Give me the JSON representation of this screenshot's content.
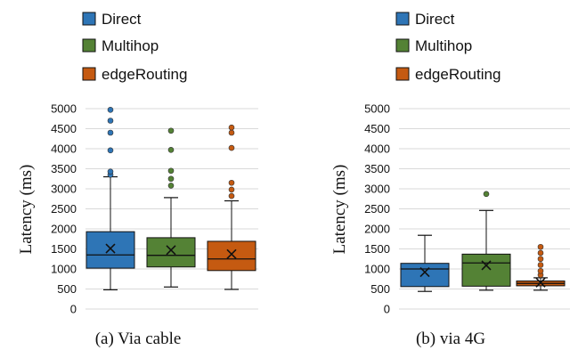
{
  "colors": {
    "direct": "#2e75b6",
    "multihop": "#548235",
    "edgeRouting": "#c55a11",
    "grid": "#d9d9d9",
    "line": "#111111"
  },
  "chart_data": [
    {
      "type": "box",
      "caption": "(a) Via cable",
      "ylabel": "Latency (ms)",
      "ylim": [
        0,
        5000
      ],
      "yticks": [
        "0",
        "500",
        "1000",
        "1500",
        "2000",
        "2500",
        "3000",
        "3500",
        "4000",
        "4500",
        "5000"
      ],
      "grid": true,
      "legend": {
        "position": "top-left",
        "entries": [
          "Direct",
          "Multihop",
          "edgeRouting"
        ]
      },
      "series": [
        {
          "name": "Direct",
          "color_key": "direct",
          "min": 480,
          "q1": 1020,
          "median": 1350,
          "q3": 1930,
          "max": 3300,
          "mean": 1510,
          "outliers": [
            3350,
            3430,
            3960,
            4400,
            4700,
            4970
          ]
        },
        {
          "name": "Multihop",
          "color_key": "multihop",
          "min": 550,
          "q1": 1050,
          "median": 1340,
          "q3": 1780,
          "max": 2780,
          "mean": 1470,
          "outliers": [
            3080,
            3250,
            3450,
            3970,
            4450
          ]
        },
        {
          "name": "edgeRouting",
          "color_key": "edgeRouting",
          "min": 490,
          "q1": 960,
          "median": 1250,
          "q3": 1690,
          "max": 2700,
          "mean": 1370,
          "outliers": [
            2820,
            2980,
            3150,
            4020,
            4400,
            4530
          ]
        }
      ]
    },
    {
      "type": "box",
      "caption": "(b) via 4G",
      "ylabel": "Latency (ms)",
      "ylim": [
        0,
        5000
      ],
      "yticks": [
        "0",
        "500",
        "1000",
        "1500",
        "2000",
        "2500",
        "3000",
        "3500",
        "4000",
        "4500",
        "5000"
      ],
      "grid": true,
      "legend": {
        "position": "top-left",
        "entries": [
          "Direct",
          "Multihop",
          "edgeRouting"
        ]
      },
      "series": [
        {
          "name": "Direct",
          "color_key": "direct",
          "min": 440,
          "q1": 560,
          "median": 1000,
          "q3": 1140,
          "max": 1840,
          "mean": 920,
          "outliers": []
        },
        {
          "name": "Multihop",
          "color_key": "multihop",
          "min": 470,
          "q1": 570,
          "median": 1150,
          "q3": 1370,
          "max": 2460,
          "mean": 1090,
          "outliers": [
            2870
          ]
        },
        {
          "name": "edgeRouting",
          "color_key": "edgeRouting",
          "min": 470,
          "q1": 580,
          "median": 640,
          "q3": 700,
          "max": 780,
          "mean": 660,
          "outliers": [
            850,
            950,
            1100,
            1250,
            1400,
            1550
          ]
        }
      ]
    }
  ]
}
